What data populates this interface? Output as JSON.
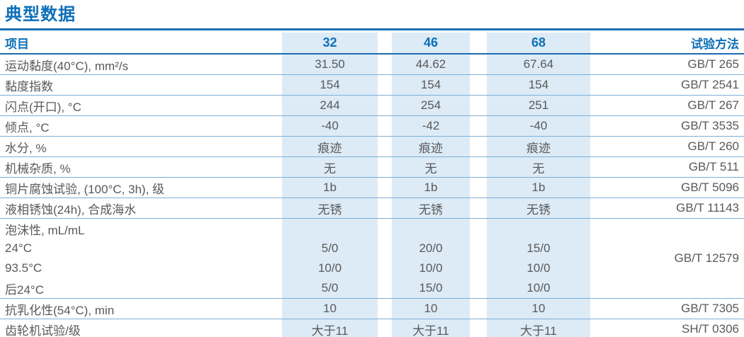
{
  "title": "典型数据",
  "table": {
    "header": {
      "item": "项目",
      "grade1": "32",
      "grade2": "46",
      "grade3": "68",
      "method": "试验方法"
    },
    "rows": [
      {
        "label": "运动黏度(40°C), mm²/s",
        "c1": "31.50",
        "c2": "44.62",
        "c3": "67.64",
        "method": "GB/T 265"
      },
      {
        "label": "黏度指数",
        "c1": "154",
        "c2": "154",
        "c3": "154",
        "method": "GB/T 2541"
      },
      {
        "label": "闪点(开口), °C",
        "c1": "244",
        "c2": "254",
        "c3": "251",
        "method": "GB/T 267"
      },
      {
        "label": "倾点, °C",
        "c1": "-40",
        "c2": "-42",
        "c3": "-40",
        "method": "GB/T 3535"
      },
      {
        "label": "水分, %",
        "c1": "痕迹",
        "c2": "痕迹",
        "c3": "痕迹",
        "method": "GB/T 260"
      },
      {
        "label": "机械杂质, %",
        "c1": "无",
        "c2": "无",
        "c3": "无",
        "method": "GB/T 511"
      },
      {
        "label": "铜片腐蚀试验, (100°C, 3h), 级",
        "c1": "1b",
        "c2": "1b",
        "c3": "1b",
        "method": "GB/T 5096"
      },
      {
        "label": "液相锈蚀(24h), 合成海水",
        "c1": "无锈",
        "c2": "无锈",
        "c3": "无锈",
        "method": "GB/T 11143"
      },
      {
        "label": "泡沫性, mL/mL",
        "c1": "",
        "c2": "",
        "c3": "",
        "method": "GB/T 12579"
      },
      {
        "label": "24°C",
        "c1": "5/0",
        "c2": "20/0",
        "c3": "15/0"
      },
      {
        "label": "93.5°C",
        "c1": "10/0",
        "c2": "10/0",
        "c3": "10/0"
      },
      {
        "label": "后24°C",
        "c1": "5/0",
        "c2": "15/0",
        "c3": "10/0"
      },
      {
        "label": "抗乳化性(54°C), min",
        "c1": "10",
        "c2": "10",
        "c3": "10",
        "method": "GB/T 7305"
      },
      {
        "label": "齿轮机试验/级",
        "c1": "大于11",
        "c2": "大于11",
        "c3": "大于11",
        "method": "SH/T 0306"
      }
    ]
  },
  "colors": {
    "accent_blue": "#0d6fb8",
    "rule_blue": "#1e6cb0",
    "separator_blue": "#7dafd8",
    "column_shade": "#dcebf6",
    "text_gray": "#58595b"
  }
}
